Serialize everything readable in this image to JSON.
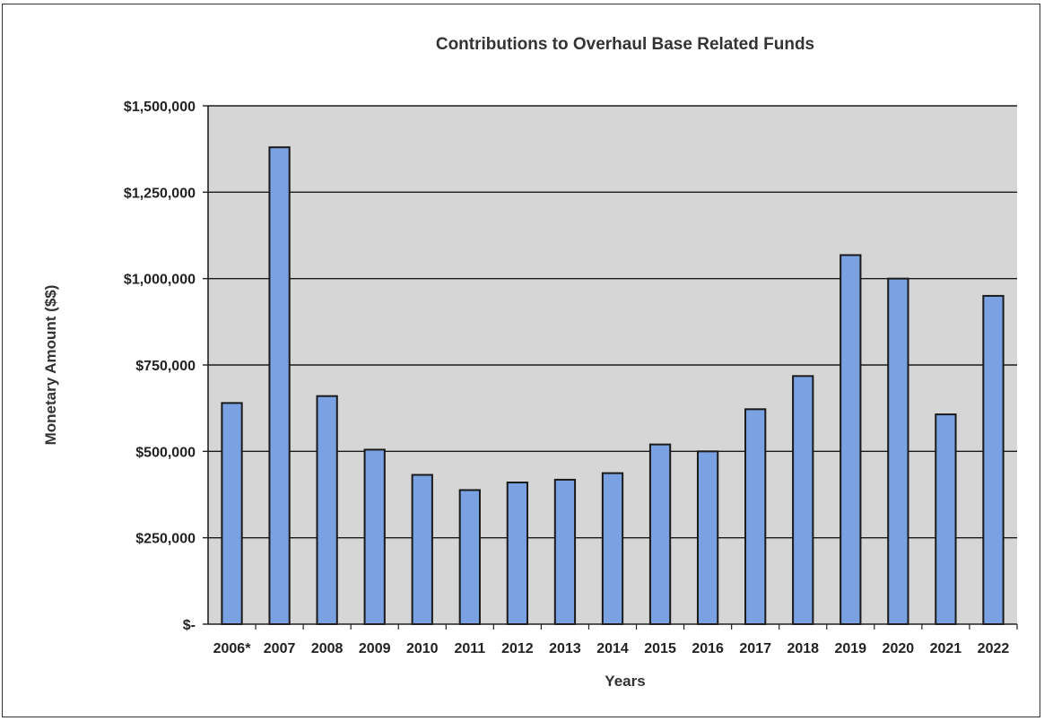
{
  "chart_data": {
    "type": "bar",
    "title": "Contributions to Overhaul Base Related Funds",
    "xlabel": "Years",
    "ylabel": "Monetary Amount ($$)",
    "categories": [
      "2006*",
      "2007",
      "2008",
      "2009",
      "2010",
      "2011",
      "2012",
      "2013",
      "2014",
      "2015",
      "2016",
      "2017",
      "2018",
      "2019",
      "2020",
      "2021",
      "2022"
    ],
    "values": [
      640000,
      1380000,
      660000,
      505000,
      432000,
      388000,
      410000,
      418000,
      437000,
      520000,
      500000,
      622000,
      718000,
      1068000,
      1000000,
      607000,
      950000
    ],
    "ylim": [
      0,
      1500000
    ],
    "yticks": [
      0,
      250000,
      500000,
      750000,
      1000000,
      1250000,
      1500000
    ],
    "ytick_labels": [
      "$-",
      "$250,000",
      "$500,000",
      "$750,000",
      "$1,000,000",
      "$1,250,000",
      "$1,500,000"
    ],
    "grid": true,
    "legend": "none",
    "colors": {
      "bar": "#7aa2e3",
      "bar_edge": "#1a1a1a",
      "plot_bg": "#d6d6d6",
      "gridline": "#1a1a1a"
    }
  }
}
